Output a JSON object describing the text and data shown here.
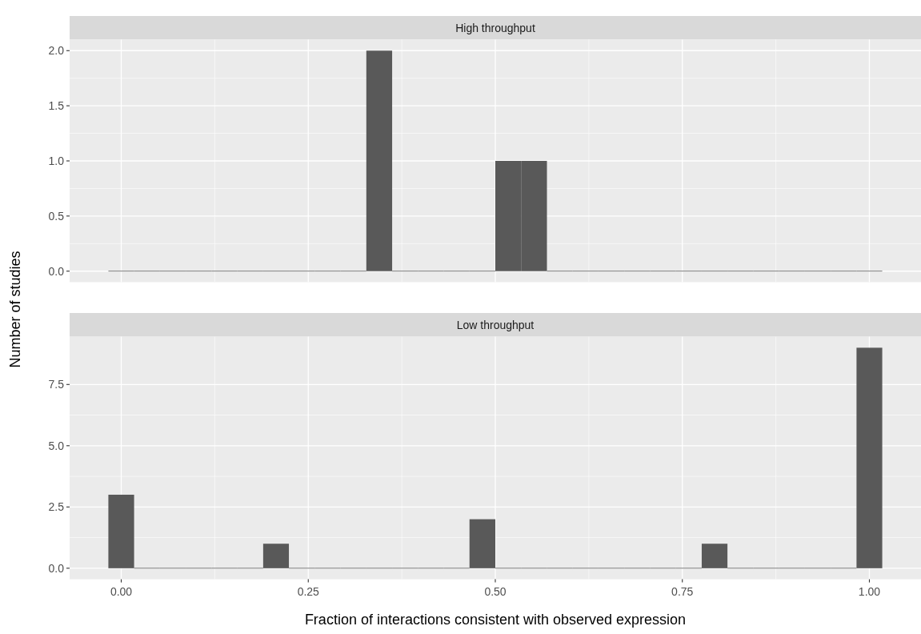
{
  "chart_data": [
    {
      "type": "histogram",
      "title": "High throughput",
      "ylabel": "Number of studies",
      "bins": [
        -0.0172,
        0.0172,
        0.0517,
        0.0862,
        0.1207,
        0.1552,
        0.1897,
        0.2241,
        0.2586,
        0.2931,
        0.3276,
        0.3621,
        0.3966,
        0.431,
        0.4655,
        0.5,
        0.5345,
        0.569,
        0.6034,
        0.6379,
        0.6724,
        0.7069,
        0.7414,
        0.7759,
        0.8103,
        0.8448,
        0.8793,
        0.9138,
        0.9483,
        0.9828,
        1.0172
      ],
      "values": [
        0,
        0,
        0,
        0,
        0,
        0,
        0,
        0,
        0,
        0,
        2,
        0,
        0,
        0,
        0,
        1,
        1,
        0,
        0,
        0,
        0,
        0,
        0,
        0,
        0,
        0,
        0,
        0,
        0,
        0
      ],
      "color": "#595959",
      "xlim": [
        -0.069,
        1.069
      ],
      "ylim": [
        -0.1,
        2.1
      ],
      "yticks": [
        {
          "value": 0,
          "label": "0.0"
        },
        0.5,
        {
          "value": 1,
          "label": "1.0"
        },
        1.5,
        {
          "value": 2,
          "label": "2.0"
        }
      ],
      "grid": true,
      "tick_labels": "y"
    },
    {
      "type": "histogram",
      "title": "Low throughput",
      "xlabel": "Fraction of interactions consistent with observed expression",
      "bins": [
        -0.0172,
        0.0172,
        0.0517,
        0.0862,
        0.1207,
        0.1552,
        0.1897,
        0.2241,
        0.2586,
        0.2931,
        0.3276,
        0.3621,
        0.3966,
        0.431,
        0.4655,
        0.5,
        0.5345,
        0.569,
        0.6034,
        0.6379,
        0.6724,
        0.7069,
        0.7414,
        0.7759,
        0.8103,
        0.8448,
        0.8793,
        0.9138,
        0.9483,
        0.9828,
        1.0172
      ],
      "values": [
        3,
        0,
        0,
        0,
        0,
        0,
        1,
        0,
        0,
        0,
        0,
        0,
        0,
        0,
        2,
        0,
        0,
        0,
        0,
        0,
        0,
        0,
        0,
        1,
        0,
        0,
        0,
        0,
        0,
        9
      ],
      "color": "#595959",
      "xlim": [
        -0.069,
        1.069
      ],
      "xticks": [
        {
          "value": 0,
          "label": "0.00"
        },
        0.25,
        {
          "value": 0.5,
          "label": "0.50"
        },
        0.75,
        {
          "value": 1,
          "label": "1.00"
        }
      ],
      "ylim": [
        -0.45,
        9.45
      ],
      "yticks": [
        {
          "value": 0,
          "label": "0.0"
        },
        2.5,
        {
          "value": 5,
          "label": "5.0"
        },
        7.5
      ],
      "grid": true
    }
  ]
}
